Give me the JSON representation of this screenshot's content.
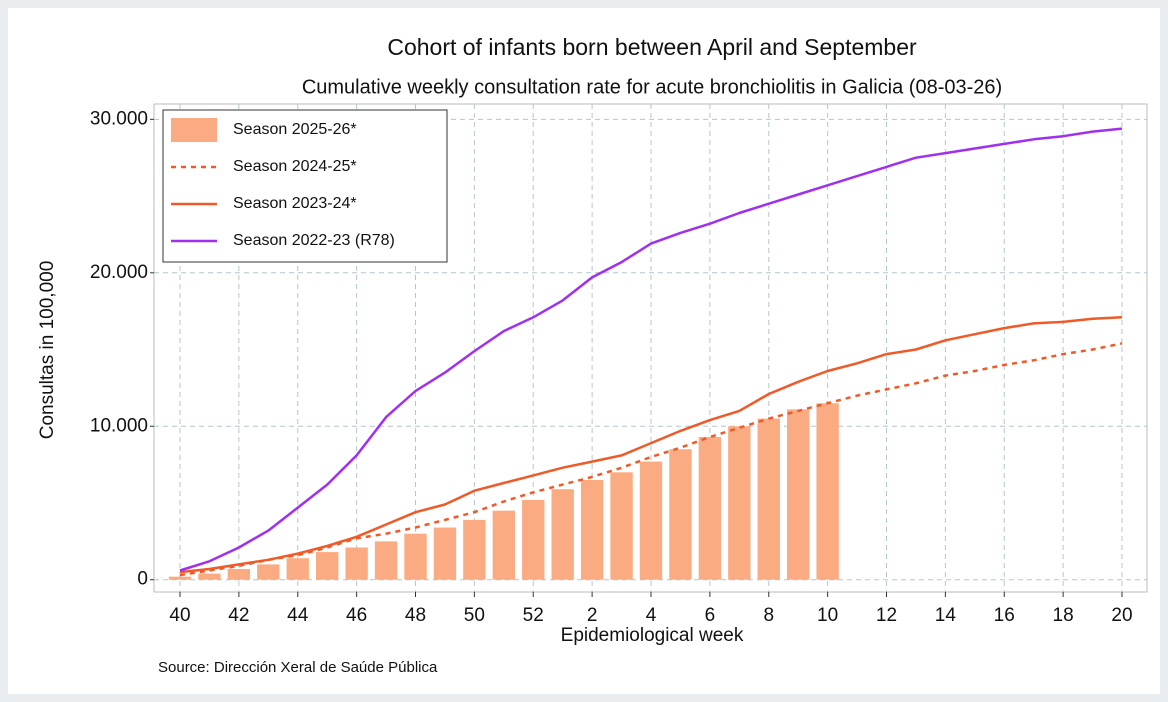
{
  "chart_data": {
    "type": "combo",
    "title": "Cohort of infants born between April and September",
    "subtitle": "Cumulative weekly consultation rate for acute bronchiolitis in Galicia (08-03-26)",
    "x_label": "Epidemiological week",
    "y_label": "Consultas in 100,000",
    "source": "Source: Dirección Xeral de Saúde Pública",
    "categories": [
      40,
      null,
      42,
      null,
      44,
      null,
      46,
      null,
      48,
      null,
      50,
      null,
      52,
      null,
      2,
      null,
      4,
      null,
      6,
      null,
      8,
      null,
      10,
      null,
      12,
      null,
      14,
      null,
      16,
      null,
      18,
      null,
      20
    ],
    "ylim": [
      -800,
      31000
    ],
    "yticks": [
      0,
      {
        "value": 10000,
        "label": "10.000"
      },
      {
        "value": 20000,
        "label": "20.000"
      },
      {
        "value": 30000,
        "label": "30.000"
      }
    ],
    "grid": true,
    "legend": "top-left",
    "series": [
      {
        "name": "Season 2025-26*",
        "type": "bar",
        "color": "#fbab82",
        "values": [
          200,
          400,
          700,
          1000,
          1400,
          1800,
          2100,
          2500,
          3000,
          3400,
          3900,
          4500,
          5200,
          5900,
          6500,
          7000,
          7700,
          8500,
          9300,
          10000,
          10500,
          11100,
          11500,
          null,
          null,
          null,
          null,
          null,
          null,
          null,
          null,
          null,
          null
        ]
      },
      {
        "name": "Season 2024-25*",
        "type": "line",
        "dashed": true,
        "color": "#f05a28",
        "values": [
          300,
          600,
          900,
          1300,
          1600,
          2100,
          2700,
          3000,
          3400,
          3900,
          4400,
          5100,
          5700,
          6200,
          6700,
          7300,
          8000,
          8600,
          9300,
          9900,
          10500,
          11000,
          11500,
          12000,
          12400,
          12800,
          13300,
          13600,
          14000,
          14300,
          14700,
          15000,
          15400
        ]
      },
      {
        "name": "Season 2023-24*",
        "type": "line",
        "color": "#f05a28",
        "values": [
          500,
          700,
          1000,
          1300,
          1700,
          2200,
          2800,
          3600,
          4400,
          4900,
          5800,
          6300,
          6800,
          7300,
          7700,
          8100,
          8900,
          9700,
          10400,
          11000,
          12100,
          12900,
          13600,
          14100,
          14700,
          15000,
          15600,
          16000,
          16400,
          16700,
          16800,
          17000,
          17100
        ]
      },
      {
        "name": "Season 2022-23 (R78)",
        "type": "line",
        "color": "#a030f0",
        "values": [
          600,
          1200,
          2100,
          3200,
          4700,
          6200,
          8100,
          10600,
          12300,
          13500,
          14900,
          16200,
          17100,
          18200,
          19700,
          20700,
          21900,
          22600,
          23200,
          23900,
          24500,
          25100,
          25700,
          26300,
          26900,
          27500,
          27800,
          28100,
          28400,
          28700,
          28900,
          29200,
          29400
        ]
      }
    ]
  }
}
